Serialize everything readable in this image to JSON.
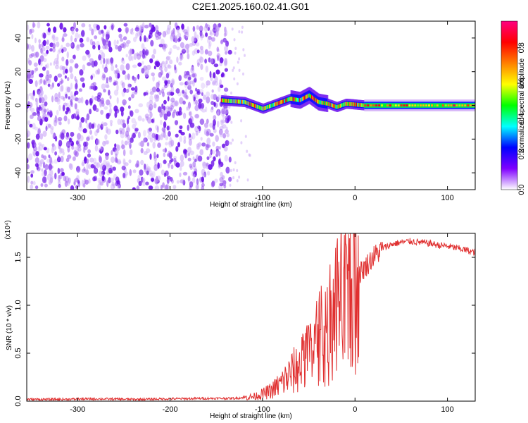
{
  "title": "C2E1.2025.160.02.41.G01",
  "chart_data": [
    {
      "type": "heatmap",
      "name": "spectrogram",
      "xlabel": "Height of straight line (km)",
      "ylabel": "Frequency (Hz)",
      "xlim": [
        -355,
        130
      ],
      "ylim": [
        -50,
        50
      ],
      "xticks": [
        -300,
        -200,
        -100,
        0,
        100
      ],
      "yticks": [
        -40,
        -20,
        0,
        20,
        40
      ],
      "colorbar": {
        "label": "Normalized spectral amplitude",
        "range": [
          0,
          0.95
        ],
        "ticks": [
          "0.0",
          "0.2",
          "0.4",
          "0.6",
          "0.8"
        ],
        "tick_values": [
          0,
          0.2,
          0.4,
          0.6,
          0.8
        ],
        "colors": [
          "#ffffff",
          "#7f00ff",
          "#0000ff",
          "#00ffff",
          "#00ff00",
          "#ffff00",
          "#ff8000",
          "#ff0000",
          "#ff0080"
        ]
      },
      "regions": [
        {
          "name": "noise",
          "x": [
            -355,
            -135
          ],
          "freq": [
            -50,
            48
          ],
          "level": 0.15
        },
        {
          "name": "tone-wandering",
          "x": [
            -145,
            10
          ],
          "center_freq_points": [
            [
              -145,
              3
            ],
            [
              -120,
              2
            ],
            [
              -100,
              -2
            ],
            [
              -85,
              1
            ],
            [
              -70,
              4
            ],
            [
              -60,
              3
            ],
            [
              -50,
              6
            ],
            [
              -40,
              2
            ],
            [
              -30,
              1
            ],
            [
              -20,
              -1
            ],
            [
              -10,
              1
            ],
            [
              0,
              0.5
            ],
            [
              10,
              0
            ]
          ],
          "level": 0.65
        },
        {
          "name": "tone-steady",
          "x": [
            10,
            130
          ],
          "center_freq": 0,
          "level": 0.5
        }
      ]
    },
    {
      "type": "line",
      "name": "snr",
      "xlabel": "Height of straight line (km)",
      "ylabel": "SNR (10 * v/v)",
      "multiplier": "(x10⁴)",
      "xlim": [
        -355,
        130
      ],
      "ylim": [
        0,
        1.75
      ],
      "xticks": [
        -300,
        -200,
        -100,
        0,
        100
      ],
      "yticks": [
        0.0,
        0.5,
        1.0,
        1.5
      ],
      "ytick_labels": [
        "0.0",
        "0.5",
        "1.0",
        "1.5"
      ],
      "color": "#e03030",
      "x": [
        -355,
        -320,
        -280,
        -240,
        -200,
        -160,
        -130,
        -110,
        -100,
        -90,
        -80,
        -70,
        -60,
        -50,
        -40,
        -30,
        -20,
        -15,
        -10,
        -5,
        0,
        10,
        20,
        30,
        40,
        50,
        60,
        70,
        80,
        90,
        100,
        110,
        120,
        130
      ],
      "y": [
        0.02,
        0.02,
        0.025,
        0.02,
        0.025,
        0.03,
        0.03,
        0.05,
        0.08,
        0.12,
        0.2,
        0.3,
        0.4,
        0.5,
        0.6,
        0.75,
        0.9,
        1.0,
        1.05,
        1.15,
        1.3,
        1.4,
        1.52,
        1.6,
        1.64,
        1.66,
        1.67,
        1.66,
        1.65,
        1.63,
        1.62,
        1.6,
        1.58,
        1.55
      ]
    }
  ]
}
